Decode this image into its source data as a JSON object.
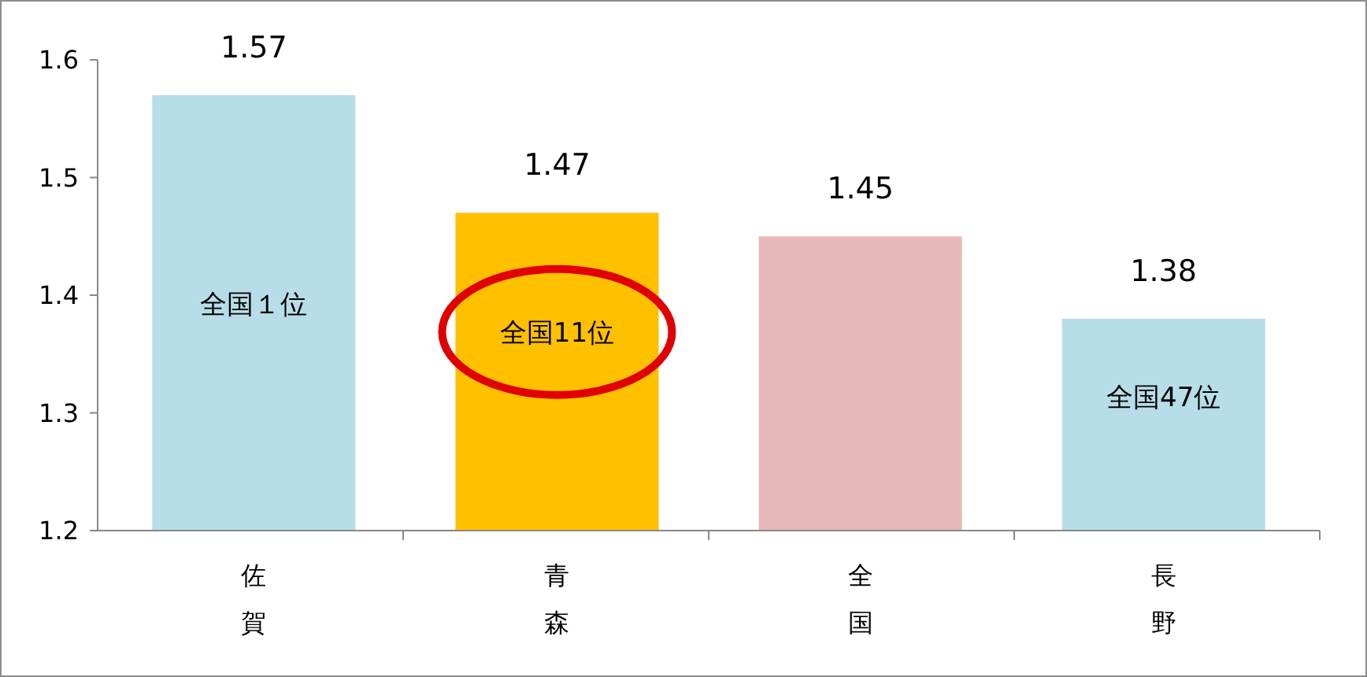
{
  "chart_data": {
    "type": "bar",
    "categories": [
      "佐賀",
      "青森",
      "全国",
      "長野"
    ],
    "values": [
      1.57,
      1.47,
      1.45,
      1.38
    ],
    "colors": [
      "#b7dde8",
      "#ffc000",
      "#e6b9b8",
      "#b7dde8"
    ],
    "ylim": [
      1.2,
      1.6
    ],
    "yticks": [
      1.2,
      1.3,
      1.4,
      1.5,
      1.6
    ],
    "grid": false,
    "data_labels": true,
    "annotations": [
      "全国１位",
      "全国11位",
      "全国47位"
    ]
  }
}
